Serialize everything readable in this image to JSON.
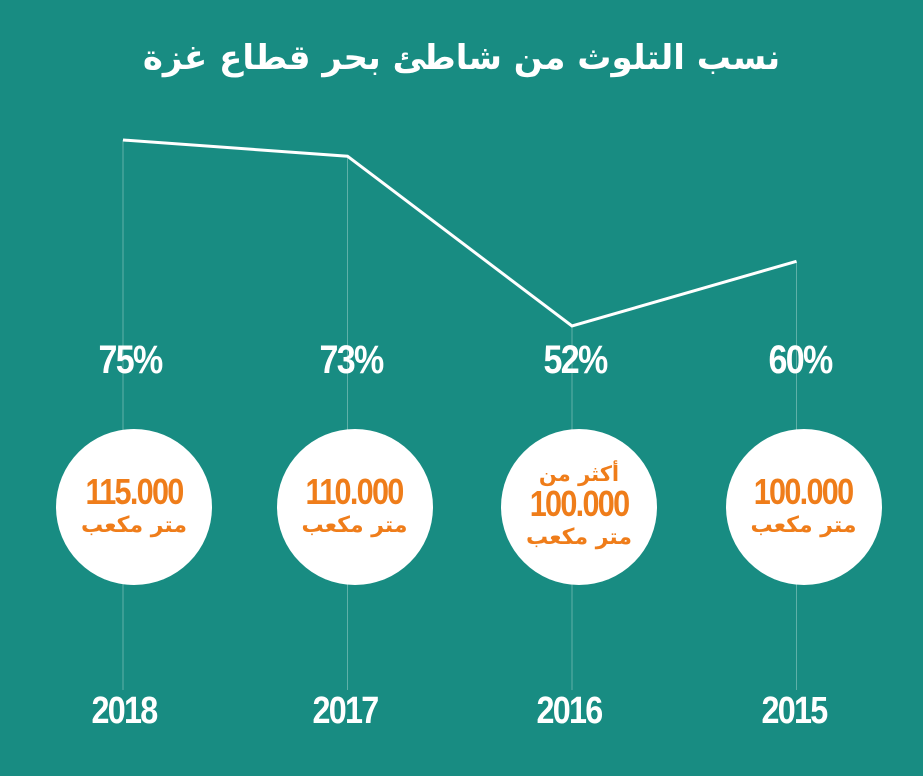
{
  "chart_data": {
    "type": "line",
    "title": "نسب التلوث من شاطئ بحر قطاع غزة",
    "categories": [
      "2018",
      "2017",
      "2016",
      "2015"
    ],
    "values": [
      75,
      73,
      52,
      60
    ],
    "value_labels": [
      "75%",
      "73%",
      "52%",
      "60%"
    ],
    "volumes": [
      {
        "prefix": "",
        "value": "115.000",
        "unit": "متر مكعب"
      },
      {
        "prefix": "",
        "value": "110.000",
        "unit": "متر مكعب"
      },
      {
        "prefix": "أكثر من",
        "value": "100.000",
        "unit": "متر مكعب"
      },
      {
        "prefix": "",
        "value": "100.000",
        "unit": "متر مكعب"
      }
    ],
    "xlabel": "",
    "ylabel": "",
    "grid": false,
    "legend": "none"
  },
  "colors": {
    "background": "#188c82",
    "line": "#ffffff",
    "circle": "#ffffff",
    "accent": "#ef7d1a",
    "guide": "#5fb0a8"
  }
}
